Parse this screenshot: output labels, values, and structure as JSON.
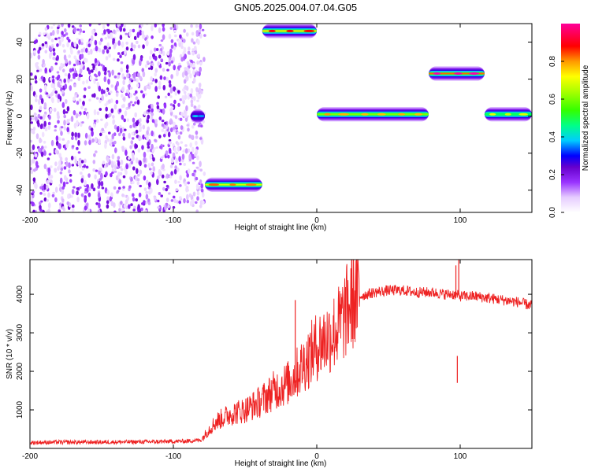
{
  "figure_title": "GN05.2025.004.07.04.G05",
  "chart_data": [
    {
      "type": "heatmap",
      "xlabel": "Height of straight line (km)",
      "ylabel": "Frequency (Hz)",
      "xlim": [
        -200,
        150
      ],
      "ylim": [
        -52,
        50
      ],
      "xticks": [
        -200,
        -100,
        0,
        100
      ],
      "yticks": [
        -40,
        -20,
        0,
        20,
        40
      ],
      "colorbar": {
        "label": "Normalized spectral amplitude",
        "range": [
          0,
          1
        ],
        "ticks": [
          "0.0",
          "0.2",
          "0.4",
          "0.6",
          "0.8"
        ],
        "colors": [
          "#ffffff",
          "#e6ccff",
          "#9933ff",
          "#6600cc",
          "#0000ff",
          "#00ccff",
          "#00ff66",
          "#66ff00",
          "#ffff00",
          "#ff9900",
          "#ff0000",
          "#ff00aa"
        ]
      },
      "noise_region": {
        "x": [
          -200,
          -78
        ],
        "y": [
          -52,
          50
        ]
      },
      "tracks": [
        {
          "x": [
            -88,
            -78
          ],
          "freq": 0,
          "peak": 0.3
        },
        {
          "x": [
            -78,
            -38
          ],
          "freq": -37,
          "peak": 0.7
        },
        {
          "x": [
            -38,
            0
          ],
          "freq": 46,
          "peak": 0.75
        },
        {
          "x": [
            0,
            78
          ],
          "freq": 1,
          "peak": 0.65
        },
        {
          "x": [
            78,
            117
          ],
          "freq": 23,
          "peak": 0.85
        },
        {
          "x": [
            117,
            150
          ],
          "freq": 1,
          "peak": 0.55
        }
      ]
    },
    {
      "type": "line",
      "xlabel": "Height of straight line (km)",
      "ylabel": "SNR (10 * v/v)",
      "xlim": [
        -200,
        150
      ],
      "ylim": [
        0,
        4900
      ],
      "xticks": [
        -200,
        -100,
        0,
        100
      ],
      "yticks": [
        1000,
        2000,
        3000,
        4000
      ],
      "color": "#ee2222",
      "series": [
        {
          "x": [
            -200,
            -180,
            -160,
            -140,
            -120,
            -100,
            -90,
            -80
          ],
          "values": [
            150,
            160,
            160,
            165,
            170,
            180,
            190,
            220
          ]
        },
        {
          "x": [
            -80,
            -75,
            -70,
            -65,
            -60,
            -55,
            -50,
            -45,
            -40,
            -35,
            -30,
            -25,
            -20,
            -15,
            -10,
            -5,
            0,
            5,
            10,
            15,
            20,
            25,
            30,
            40,
            50,
            60,
            70,
            80,
            90,
            95,
            100,
            105,
            110,
            120,
            130,
            140,
            150
          ],
          "values": [
            250,
            500,
            700,
            800,
            900,
            950,
            1000,
            1100,
            1200,
            1350,
            1500,
            1600,
            1700,
            1900,
            2150,
            2400,
            2650,
            2800,
            2950,
            3150,
            3500,
            3850,
            3950,
            4050,
            4100,
            4100,
            4050,
            4050,
            4000,
            4000,
            3950,
            3950,
            3950,
            3900,
            3850,
            3800,
            3700
          ]
        }
      ],
      "spikes": [
        {
          "x": -15,
          "value": 3850
        },
        {
          "x": 97,
          "value": 4750
        },
        {
          "x": 99,
          "value": 4900
        },
        {
          "x": 98,
          "value": 2400
        }
      ]
    }
  ]
}
